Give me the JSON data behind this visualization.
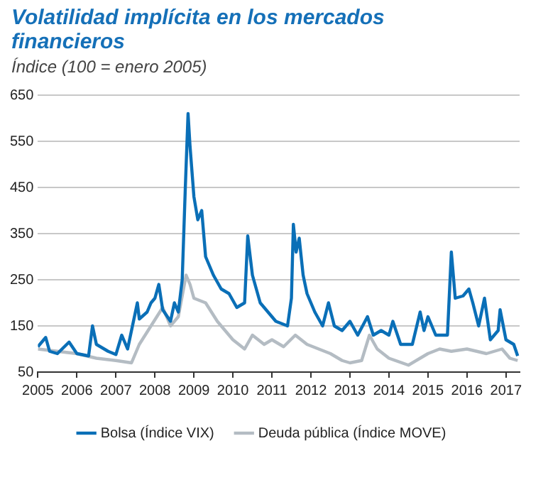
{
  "chart_data": {
    "type": "line",
    "title": "Volatilidad implícita en los mercados financieros",
    "subtitle": "Índice (100 = enero 2005)",
    "xlim": [
      2005,
      2017.35
    ],
    "xticks": [
      2005,
      2006,
      2007,
      2008,
      2009,
      2010,
      2011,
      2012,
      2013,
      2014,
      2015,
      2016,
      2017
    ],
    "ylim": [
      50,
      650
    ],
    "yticks": [
      50,
      150,
      250,
      350,
      450,
      550,
      650
    ],
    "grid": "y",
    "legend": "bottom",
    "marker": "none",
    "line_style": "solid",
    "series": [
      {
        "name": "Bolsa (Índice VIX)",
        "color": "#0a6fb7",
        "x": [
          2005.0,
          2005.2,
          2005.3,
          2005.5,
          2005.8,
          2006.0,
          2006.3,
          2006.4,
          2006.5,
          2006.8,
          2007.0,
          2007.15,
          2007.3,
          2007.55,
          2007.6,
          2007.8,
          2007.9,
          2008.0,
          2008.1,
          2008.2,
          2008.4,
          2008.5,
          2008.6,
          2008.7,
          2008.78,
          2008.85,
          2008.9,
          2009.0,
          2009.1,
          2009.2,
          2009.3,
          2009.5,
          2009.7,
          2009.9,
          2010.1,
          2010.3,
          2010.38,
          2010.5,
          2010.7,
          2010.9,
          2011.1,
          2011.4,
          2011.5,
          2011.55,
          2011.62,
          2011.7,
          2011.8,
          2011.9,
          2012.1,
          2012.3,
          2012.45,
          2012.6,
          2012.8,
          2013.0,
          2013.2,
          2013.45,
          2013.6,
          2013.8,
          2014.0,
          2014.1,
          2014.3,
          2014.6,
          2014.8,
          2014.9,
          2015.0,
          2015.2,
          2015.5,
          2015.6,
          2015.7,
          2015.9,
          2016.05,
          2016.15,
          2016.3,
          2016.45,
          2016.6,
          2016.8,
          2016.85,
          2017.0,
          2017.2,
          2017.3
        ],
        "values": [
          105,
          125,
          95,
          90,
          115,
          90,
          85,
          150,
          110,
          95,
          88,
          130,
          100,
          200,
          165,
          180,
          200,
          210,
          240,
          185,
          160,
          200,
          180,
          250,
          450,
          610,
          540,
          430,
          380,
          400,
          300,
          260,
          230,
          220,
          190,
          200,
          345,
          260,
          200,
          180,
          160,
          150,
          210,
          370,
          310,
          340,
          260,
          220,
          180,
          150,
          200,
          150,
          140,
          160,
          130,
          170,
          130,
          140,
          130,
          160,
          110,
          110,
          180,
          140,
          170,
          130,
          130,
          310,
          210,
          215,
          230,
          200,
          150,
          210,
          120,
          140,
          185,
          120,
          110,
          85
        ]
      },
      {
        "name": "Deuda pública (Índice MOVE)",
        "color": "#b4bcc3",
        "x": [
          2005.0,
          2005.5,
          2006.0,
          2006.5,
          2007.0,
          2007.4,
          2007.6,
          2007.9,
          2008.2,
          2008.4,
          2008.6,
          2008.8,
          2008.9,
          2009.0,
          2009.3,
          2009.6,
          2010.0,
          2010.3,
          2010.5,
          2010.8,
          2011.0,
          2011.3,
          2011.6,
          2011.9,
          2012.2,
          2012.5,
          2012.8,
          2013.0,
          2013.3,
          2013.5,
          2013.7,
          2014.0,
          2014.5,
          2014.8,
          2015.0,
          2015.3,
          2015.6,
          2016.0,
          2016.5,
          2016.9,
          2017.1,
          2017.3
        ],
        "values": [
          100,
          95,
          90,
          80,
          75,
          70,
          110,
          150,
          190,
          150,
          170,
          260,
          240,
          210,
          200,
          160,
          120,
          100,
          130,
          110,
          120,
          105,
          130,
          110,
          100,
          90,
          75,
          70,
          75,
          130,
          100,
          80,
          65,
          80,
          90,
          100,
          95,
          100,
          90,
          100,
          80,
          75
        ]
      }
    ]
  }
}
